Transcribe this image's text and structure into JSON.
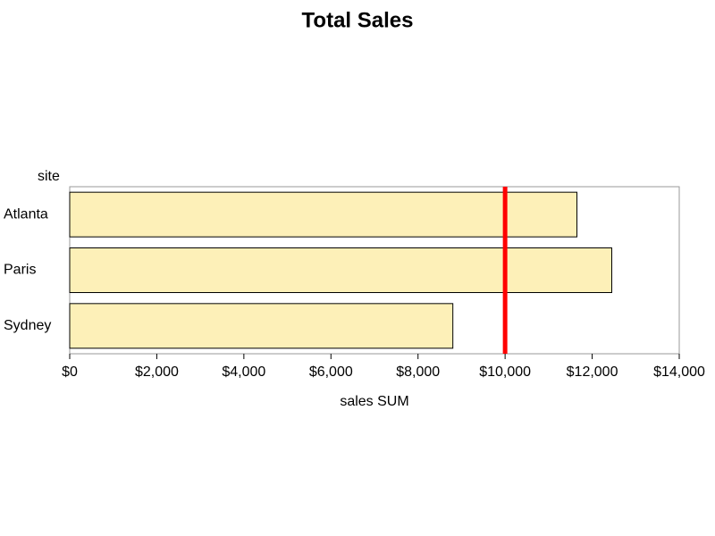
{
  "chart_data": {
    "type": "hbar",
    "title": "Total Sales",
    "y_label": "site",
    "x_label": "sales SUM",
    "categories": [
      "Atlanta",
      "Paris",
      "Sydney"
    ],
    "values": [
      11650,
      12450,
      8800
    ],
    "color": "#fdf0b8",
    "xlim": [
      0,
      14000
    ],
    "xticks": [
      {
        "value": 0,
        "label": "$0"
      },
      {
        "value": 2000,
        "label": "$2,000"
      },
      {
        "value": 4000,
        "label": "$4,000"
      },
      {
        "value": 6000,
        "label": "$6,000"
      },
      {
        "value": 8000,
        "label": "$8,000"
      },
      {
        "value": 10000,
        "label": "$10,000"
      },
      {
        "value": 12000,
        "label": "$12,000"
      },
      {
        "value": 14000,
        "label": "$14,000"
      }
    ],
    "reference_line": {
      "value": 10000,
      "color": "#ff0000"
    }
  }
}
